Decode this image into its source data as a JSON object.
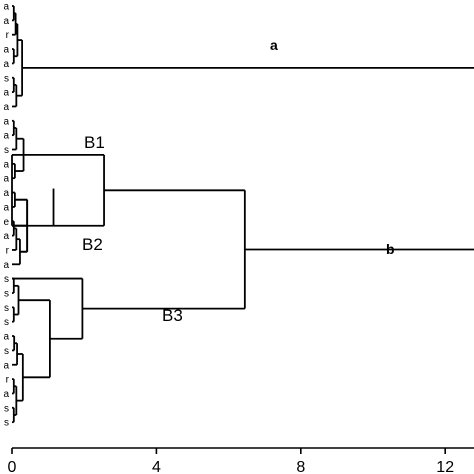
{
  "chart_data": {
    "type": "dendrogram",
    "xlim": [
      0,
      13.2
    ],
    "x_ticks": [
      "0",
      "4",
      "8",
      "12"
    ],
    "x_tick_values": [
      0,
      4,
      8,
      12
    ],
    "grid": false,
    "leaf_labels": [
      "a",
      "a",
      "r",
      "a",
      "a",
      "s",
      "a",
      "a",
      "a",
      "a",
      "s",
      "a",
      "a",
      "a",
      "a",
      "e",
      "a",
      "r",
      "a",
      "s",
      "s",
      "s",
      "s",
      "a",
      "s",
      "a",
      "r",
      "a",
      "s",
      "s"
    ],
    "annotations": [
      "a",
      "b",
      "B1",
      "B2",
      "B3"
    ],
    "merges": [
      {
        "id": "a",
        "children": [],
        "height": 13.2,
        "label": "a"
      },
      {
        "id": "B1",
        "children": [],
        "height": 2.5,
        "label": "B1"
      },
      {
        "id": "B2",
        "children": [],
        "height": 1.2,
        "label": "B2"
      },
      {
        "id": "B1B2",
        "children": [
          "B1",
          "B2"
        ],
        "height": 2.5
      },
      {
        "id": "B3",
        "children": [],
        "height": 1.9,
        "label": "B3"
      },
      {
        "id": "b",
        "children": [
          "B1B2",
          "B3"
        ],
        "height": 6.4,
        "label": "b"
      }
    ]
  }
}
